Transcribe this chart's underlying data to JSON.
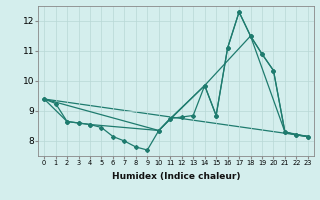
{
  "xlabel": "Humidex (Indice chaleur)",
  "background_color": "#d4eeed",
  "line_color": "#1e7b6e",
  "xlim": [
    -0.5,
    23.5
  ],
  "ylim": [
    7.5,
    12.5
  ],
  "yticks": [
    8,
    9,
    10,
    11,
    12
  ],
  "xticks": [
    0,
    1,
    2,
    3,
    4,
    5,
    6,
    7,
    8,
    9,
    10,
    11,
    12,
    13,
    14,
    15,
    16,
    17,
    18,
    19,
    20,
    21,
    22,
    23
  ],
  "line1_x": [
    0,
    1,
    2,
    3,
    4,
    5,
    6,
    7,
    8,
    9,
    10,
    11,
    12,
    13,
    14,
    15,
    16,
    17,
    18,
    19,
    20,
    21,
    22,
    23
  ],
  "line1_y": [
    9.4,
    9.25,
    8.65,
    8.6,
    8.55,
    8.45,
    8.15,
    8.0,
    7.8,
    7.7,
    8.35,
    8.75,
    8.8,
    8.85,
    9.85,
    8.85,
    11.1,
    12.3,
    11.5,
    10.9,
    10.35,
    8.3,
    8.2,
    8.15
  ],
  "line2_x": [
    0,
    2,
    3,
    4,
    10,
    11,
    14,
    15,
    16,
    17,
    18,
    19,
    20,
    21,
    22,
    23
  ],
  "line2_y": [
    9.4,
    8.65,
    8.6,
    8.55,
    8.35,
    8.75,
    9.85,
    8.85,
    11.1,
    12.3,
    11.5,
    10.9,
    10.35,
    8.3,
    8.2,
    8.15
  ],
  "line3_x": [
    0,
    23
  ],
  "line3_y": [
    9.4,
    8.15
  ],
  "line4_x": [
    0,
    10,
    14,
    18,
    21,
    23
  ],
  "line4_y": [
    9.4,
    8.35,
    9.85,
    11.5,
    8.3,
    8.15
  ]
}
